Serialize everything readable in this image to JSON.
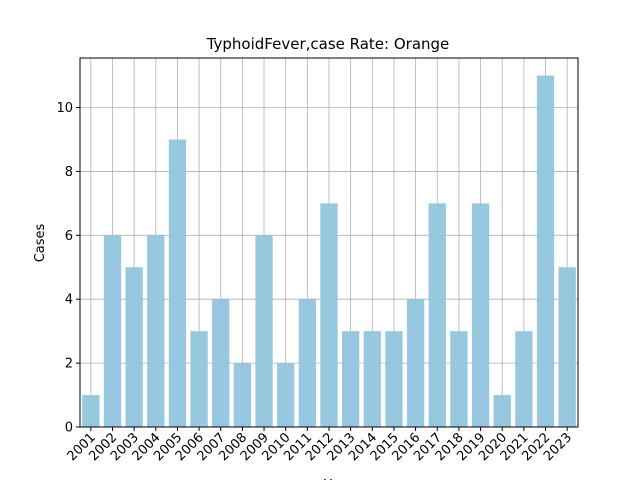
{
  "chart_data": {
    "type": "bar",
    "title": "TyphoidFever,case Rate: Orange",
    "xlabel": "Y",
    "ylabel": "Cases",
    "categories": [
      "2001",
      "2002",
      "2003",
      "2004",
      "2005",
      "2006",
      "2007",
      "2008",
      "2009",
      "2010",
      "2011",
      "2012",
      "2013",
      "2014",
      "2015",
      "2016",
      "2017",
      "2018",
      "2019",
      "2020",
      "2021",
      "2022",
      "2023"
    ],
    "values": [
      1,
      6,
      5,
      6,
      9,
      3,
      4,
      2,
      6,
      2,
      4,
      7,
      3,
      3,
      3,
      4,
      7,
      3,
      7,
      1,
      3,
      11,
      5
    ],
    "ylim": [
      0,
      11.55
    ],
    "yticks": [
      0,
      2,
      4,
      6,
      8,
      10
    ],
    "grid": true,
    "bar_color": "#92c5de"
  }
}
